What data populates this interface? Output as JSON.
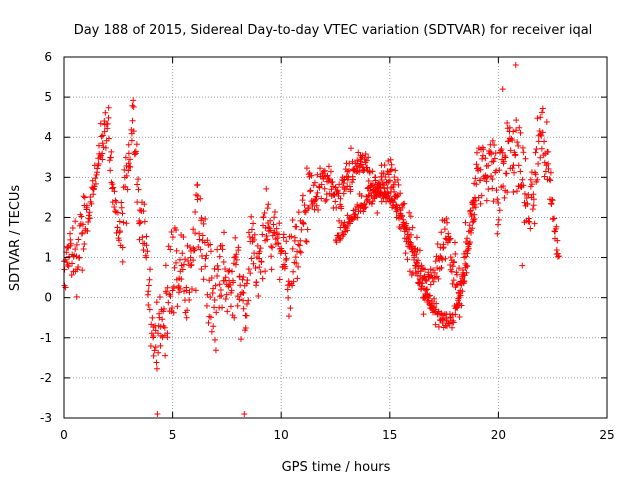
{
  "chart_data": {
    "type": "scatter",
    "title": "Day 188 of 2015, Sidereal Day-to-day VTEC variation (SDTVAR) for receiver iqal",
    "xlabel": "GPS time / hours",
    "ylabel": "SDTVAR / TECUs",
    "xlim": [
      0,
      25
    ],
    "ylim": [
      -3,
      6
    ],
    "xticks": [
      0,
      5,
      10,
      15,
      20,
      25
    ],
    "yticks": [
      -3,
      -2,
      -1,
      0,
      1,
      2,
      3,
      4,
      5,
      6
    ],
    "grid": true,
    "marker": "+",
    "color": "#ff0000",
    "series": [
      {
        "name": "SDTVAR",
        "trend": {
          "x": [
            0.0,
            0.3,
            0.6,
            0.9,
            1.2,
            1.6,
            2.0,
            2.3,
            2.6,
            3.0,
            3.2,
            3.4,
            3.8,
            4.0,
            4.3,
            4.6,
            5.0,
            5.3,
            5.6,
            6.0,
            6.3,
            6.6,
            7.0,
            7.3,
            7.6,
            8.0,
            8.3,
            8.6,
            9.0,
            9.3,
            9.6,
            10.0,
            10.3,
            10.6,
            11.0,
            11.3,
            11.6,
            12.0,
            12.3,
            12.6,
            13.0,
            13.3,
            13.6,
            14.0,
            14.3,
            14.6,
            15.0,
            15.3,
            15.6,
            16.0,
            16.3,
            16.6,
            17.0,
            17.3,
            17.6,
            18.0,
            18.3,
            18.6,
            19.0,
            19.3,
            19.6,
            20.0,
            20.3,
            20.6,
            21.0,
            21.3,
            21.6,
            22.0,
            22.3,
            22.6,
            22.8
          ],
          "y": [
            0.5,
            1.5,
            1.0,
            1.8,
            2.2,
            3.5,
            4.2,
            2.5,
            1.5,
            3.5,
            4.5,
            2.5,
            1.0,
            -0.5,
            -1.2,
            0.0,
            0.6,
            1.0,
            0.5,
            1.5,
            2.0,
            0.5,
            -0.2,
            0.8,
            0.5,
            0.8,
            -0.8,
            1.2,
            1.0,
            1.8,
            1.5,
            1.2,
            0.5,
            0.8,
            2.0,
            2.4,
            2.6,
            3.0,
            2.8,
            2.5,
            3.0,
            3.2,
            3.5,
            3.2,
            2.6,
            2.9,
            3.0,
            2.6,
            2.0,
            1.2,
            0.8,
            0.4,
            0.0,
            1.0,
            1.6,
            0.5,
            0.2,
            1.5,
            3.2,
            3.0,
            3.5,
            2.8,
            3.5,
            4.0,
            3.2,
            2.4,
            2.8,
            4.5,
            3.0,
            1.8,
            1.0
          ],
          "spread": [
            0.5,
            0.8,
            0.8,
            0.8,
            0.3,
            0.5,
            0.6,
            0.8,
            0.8,
            0.8,
            0.5,
            0.8,
            1.0,
            1.0,
            0.9,
            1.0,
            1.2,
            1.3,
            1.2,
            1.3,
            1.4,
            1.3,
            1.0,
            1.2,
            1.2,
            1.0,
            1.0,
            0.8,
            0.8,
            0.8,
            0.8,
            0.8,
            0.9,
            0.9,
            0.7,
            0.7,
            0.6,
            0.6,
            0.5,
            0.5,
            0.5,
            0.5,
            0.4,
            0.5,
            0.5,
            0.5,
            0.5,
            0.5,
            0.5,
            0.6,
            0.6,
            0.6,
            0.6,
            0.6,
            0.6,
            0.7,
            0.7,
            0.8,
            0.9,
            0.9,
            0.9,
            0.9,
            0.9,
            0.9,
            1.0,
            1.0,
            1.0,
            0.8,
            0.8,
            0.6,
            0.4
          ]
        },
        "branch": {
          "x": [
            12.5,
            13.0,
            13.5,
            14.0,
            14.5,
            15.0,
            15.5,
            16.0,
            16.5,
            17.0,
            17.5,
            18.0,
            18.5,
            19.0
          ],
          "y": [
            1.5,
            1.8,
            2.2,
            2.5,
            2.6,
            2.5,
            2.0,
            1.2,
            0.2,
            -0.3,
            -0.6,
            -0.5,
            0.8,
            2.5
          ]
        },
        "outliers": [
          {
            "x": 4.3,
            "y": -2.9
          },
          {
            "x": 8.3,
            "y": -2.9
          },
          {
            "x": 20.8,
            "y": 5.8
          },
          {
            "x": 20.2,
            "y": 5.2
          },
          {
            "x": 21.1,
            "y": 0.8
          }
        ]
      }
    ]
  }
}
